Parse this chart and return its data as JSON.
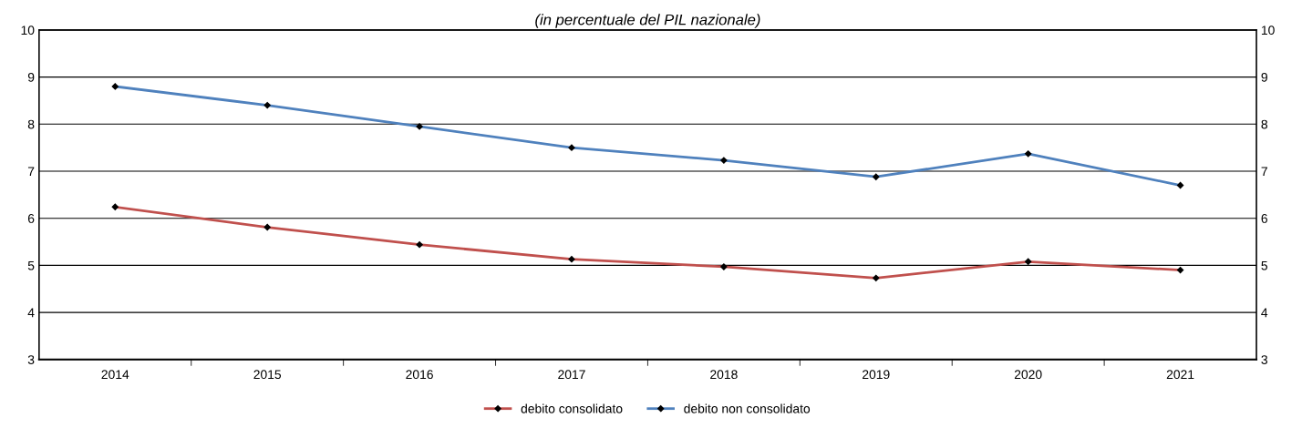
{
  "chart_data": {
    "type": "line",
    "title": "(in percentuale del PIL nazionale)",
    "categories": [
      "2014",
      "2015",
      "2016",
      "2017",
      "2018",
      "2019",
      "2020",
      "2021"
    ],
    "series": [
      {
        "name": "debito consolidato",
        "color": "#c0504d",
        "values": [
          6.24,
          5.81,
          5.44,
          5.13,
          4.97,
          4.73,
          5.08,
          4.9
        ]
      },
      {
        "name": "debito non consolidato",
        "color": "#4f81bd",
        "values": [
          8.8,
          8.4,
          7.95,
          7.5,
          7.23,
          6.88,
          7.37,
          6.7
        ]
      }
    ],
    "ylim": [
      3,
      10
    ],
    "yticks": [
      3,
      4,
      5,
      6,
      7,
      8,
      9,
      10
    ],
    "y2lim": [
      3,
      10
    ],
    "y2ticks": [
      3,
      4,
      5,
      6,
      7,
      8,
      9,
      10
    ],
    "grid": "y",
    "legend": "bottom",
    "marker": "diamond",
    "line_style": "solid"
  }
}
